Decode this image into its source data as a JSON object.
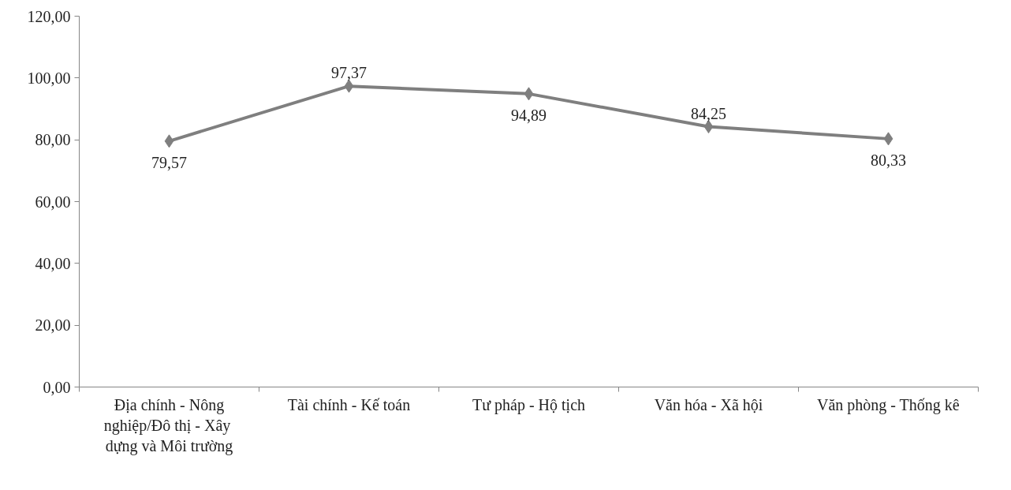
{
  "chart_data": {
    "type": "line",
    "categories": [
      "Địa chính - Nông nghiệp/Đô thị  - Xây dựng và Môi trường",
      "Tài chính - Kế toán",
      "Tư pháp - Hộ tịch",
      "Văn hóa - Xã hội",
      "Văn phòng - Thống kê"
    ],
    "series": [
      {
        "color": "#7f7f7f",
        "values": [
          79.57,
          97.37,
          94.89,
          84.25,
          80.33
        ],
        "value_labels": [
          "79,57",
          "97,37",
          "94,89",
          "84,25",
          "80,33"
        ]
      }
    ],
    "ylim": [
      0,
      120
    ],
    "yticks": [
      {
        "value": 0,
        "label": "0,00"
      },
      {
        "value": 20,
        "label": "20,00"
      },
      {
        "value": 40,
        "label": "40,00"
      },
      {
        "value": 60,
        "label": "60,00"
      },
      {
        "value": 80,
        "label": "80,00"
      },
      {
        "value": 100,
        "label": "100,00"
      },
      {
        "value": 120,
        "label": "120,00"
      }
    ],
    "marker": "diamond",
    "grid": false
  }
}
